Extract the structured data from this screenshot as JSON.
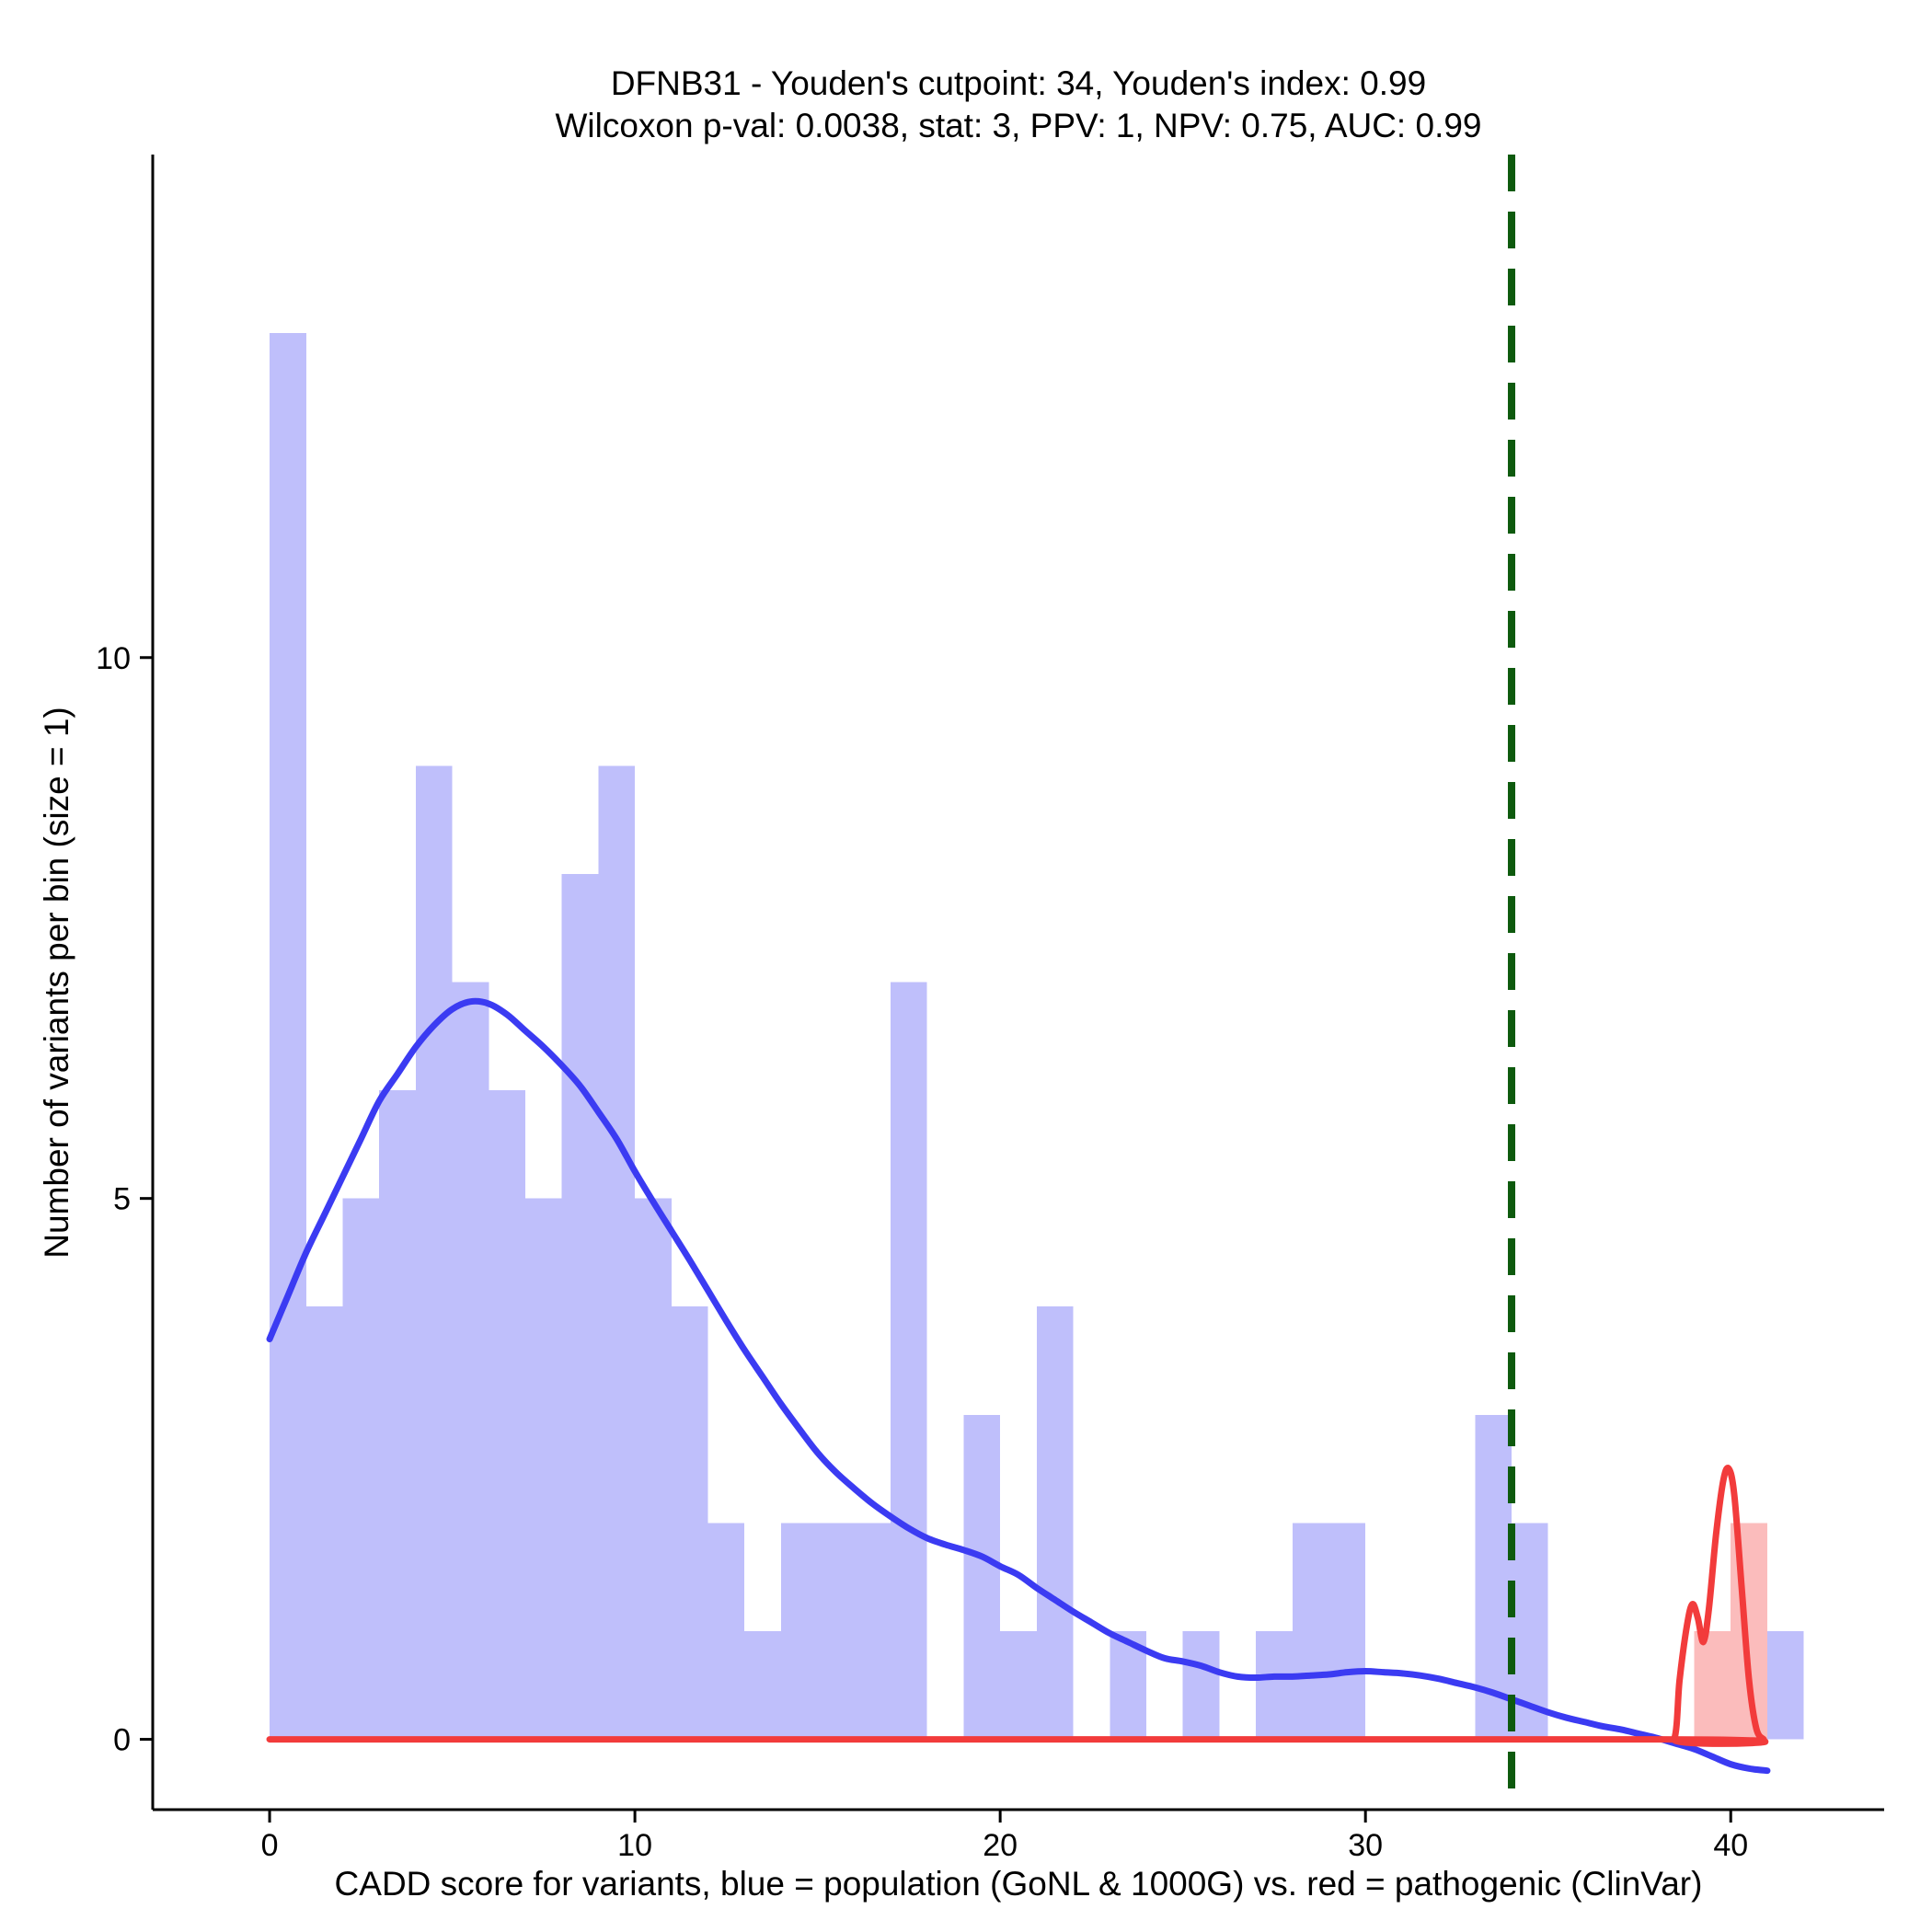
{
  "chart_data": {
    "type": "bar",
    "title_line1": "DFNB31 - Youden's cutpoint: 34, Youden's index: 0.99",
    "title_line2": "Wilcoxon p-val: 0.0038, stat: 3, PPV: 1, NPV: 0.75, AUC: 0.99",
    "xlabel": "CADD score for variants, blue = population (GoNL & 1000G) vs. red = pathogenic (ClinVar)",
    "ylabel": "Number of variants per bin (size = 1)",
    "xlim": [
      -3.2,
      44.2
    ],
    "ylim": [
      -0.65,
      14.65
    ],
    "x_ticks": [
      0,
      10,
      20,
      30,
      40
    ],
    "y_ticks": [
      0,
      5,
      10
    ],
    "bin_width": 1,
    "cutpoint": 34,
    "colors": {
      "population_bar": "#bfbffb",
      "pathogenic_bar": "#fbbcbc",
      "population_curve": "#3b3bf2",
      "pathogenic_curve": "#f23b3b",
      "cutpoint_line": "#0e5a0e"
    },
    "series": [
      {
        "name": "population (GoNL & 1000G)",
        "bins_start": [
          0,
          1,
          2,
          3,
          4,
          5,
          6,
          7,
          8,
          9,
          10,
          11,
          12,
          13,
          14,
          15,
          16,
          17,
          18,
          19,
          20,
          21,
          22,
          23,
          24,
          25,
          26,
          27,
          28,
          29,
          30,
          31,
          32,
          33,
          34,
          35,
          36,
          37,
          38,
          39,
          40,
          41
        ],
        "values": [
          13,
          4,
          5,
          6,
          9,
          7,
          6,
          5,
          8,
          9,
          5,
          4,
          2,
          1,
          2,
          2,
          2,
          7,
          0,
          3,
          1,
          4,
          0,
          1,
          0,
          1,
          0,
          1,
          2,
          2,
          0,
          0,
          0,
          3,
          2,
          0,
          0,
          0,
          0,
          0,
          0,
          1
        ],
        "density_curve": [
          [
            0,
            3.7
          ],
          [
            0.5,
            4.1
          ],
          [
            1,
            4.5
          ],
          [
            1.5,
            4.85
          ],
          [
            2,
            5.2
          ],
          [
            2.5,
            5.55
          ],
          [
            3,
            5.9
          ],
          [
            3.5,
            6.15
          ],
          [
            4,
            6.4
          ],
          [
            4.5,
            6.6
          ],
          [
            5,
            6.75
          ],
          [
            5.5,
            6.82
          ],
          [
            6,
            6.8
          ],
          [
            6.5,
            6.7
          ],
          [
            7,
            6.55
          ],
          [
            7.5,
            6.4
          ],
          [
            8,
            6.23
          ],
          [
            8.5,
            6.04
          ],
          [
            9,
            5.8
          ],
          [
            9.5,
            5.55
          ],
          [
            10,
            5.25
          ],
          [
            10.5,
            4.97
          ],
          [
            11,
            4.7
          ],
          [
            11.5,
            4.43
          ],
          [
            12,
            4.15
          ],
          [
            12.5,
            3.87
          ],
          [
            13,
            3.6
          ],
          [
            13.5,
            3.35
          ],
          [
            14,
            3.1
          ],
          [
            14.5,
            2.87
          ],
          [
            15,
            2.65
          ],
          [
            15.5,
            2.47
          ],
          [
            16,
            2.32
          ],
          [
            16.5,
            2.18
          ],
          [
            17,
            2.06
          ],
          [
            17.5,
            1.95
          ],
          [
            18,
            1.86
          ],
          [
            18.5,
            1.8
          ],
          [
            19,
            1.75
          ],
          [
            19.5,
            1.69
          ],
          [
            20,
            1.6
          ],
          [
            20.5,
            1.52
          ],
          [
            21,
            1.4
          ],
          [
            21.5,
            1.29
          ],
          [
            22,
            1.18
          ],
          [
            22.5,
            1.08
          ],
          [
            23,
            0.98
          ],
          [
            23.5,
            0.9
          ],
          [
            24,
            0.82
          ],
          [
            24.5,
            0.75
          ],
          [
            25,
            0.72
          ],
          [
            25.5,
            0.68
          ],
          [
            26,
            0.62
          ],
          [
            26.5,
            0.58
          ],
          [
            27,
            0.57
          ],
          [
            27.5,
            0.58
          ],
          [
            28,
            0.58
          ],
          [
            28.5,
            0.59
          ],
          [
            29,
            0.6
          ],
          [
            29.5,
            0.62
          ],
          [
            30,
            0.63
          ],
          [
            30.5,
            0.62
          ],
          [
            31,
            0.61
          ],
          [
            31.5,
            0.59
          ],
          [
            32,
            0.56
          ],
          [
            32.5,
            0.52
          ],
          [
            33,
            0.48
          ],
          [
            33.5,
            0.43
          ],
          [
            34,
            0.37
          ],
          [
            34.5,
            0.31
          ],
          [
            35,
            0.25
          ],
          [
            35.5,
            0.2
          ],
          [
            36,
            0.16
          ],
          [
            36.5,
            0.12
          ],
          [
            37,
            0.09
          ],
          [
            37.5,
            0.05
          ],
          [
            38,
            0.01
          ],
          [
            38.5,
            -0.04
          ],
          [
            39,
            -0.09
          ],
          [
            39.5,
            -0.16
          ],
          [
            40,
            -0.23
          ],
          [
            40.5,
            -0.27
          ],
          [
            41,
            -0.29
          ]
        ]
      },
      {
        "name": "pathogenic (ClinVar)",
        "bins_start": [
          39,
          40
        ],
        "values": [
          1,
          2
        ],
        "density_curve": [
          [
            0,
            0
          ],
          [
            38,
            0
          ],
          [
            38.45,
            0
          ],
          [
            38.6,
            0.55
          ],
          [
            38.8,
            1.05
          ],
          [
            38.95,
            1.25
          ],
          [
            39.1,
            1.12
          ],
          [
            39.25,
            0.9
          ],
          [
            39.4,
            1.2
          ],
          [
            39.6,
            1.9
          ],
          [
            39.8,
            2.4
          ],
          [
            39.95,
            2.5
          ],
          [
            40.1,
            2.25
          ],
          [
            40.3,
            1.4
          ],
          [
            40.5,
            0.55
          ],
          [
            40.7,
            0.1
          ],
          [
            40.9,
            0
          ]
        ]
      }
    ]
  }
}
